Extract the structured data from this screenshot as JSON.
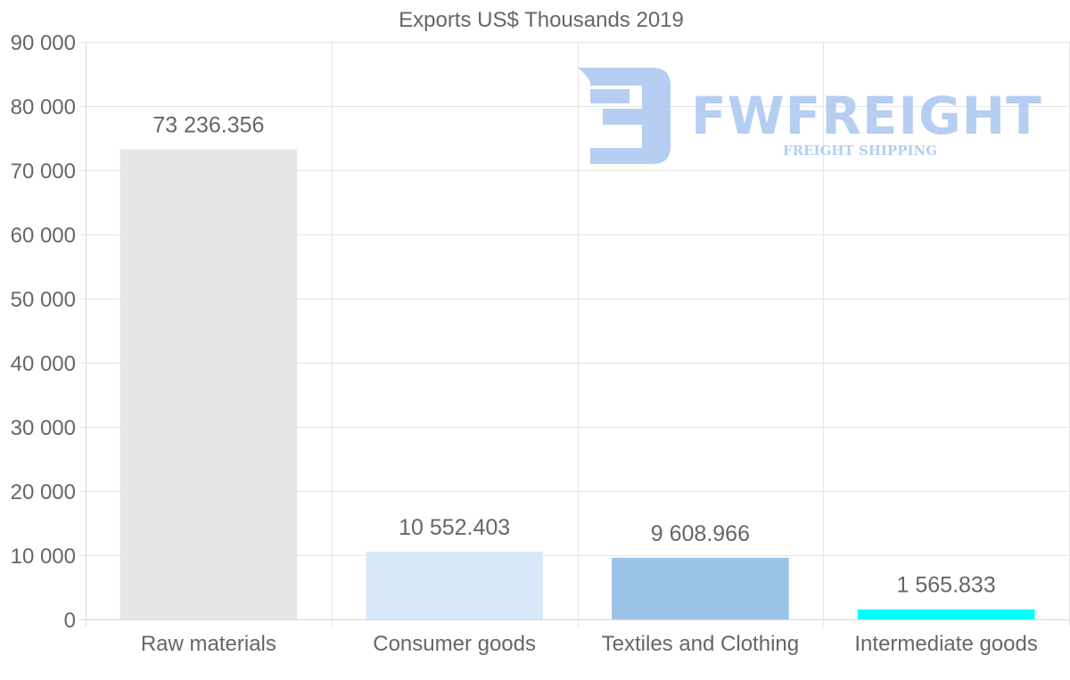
{
  "chart_data": {
    "type": "bar",
    "title": "Exports US$ Thousands 2019",
    "categories": [
      "Raw materials",
      "Consumer goods",
      "Textiles and Clothing",
      "Intermediate goods"
    ],
    "values": [
      73236.356,
      10552.403,
      9608.966,
      1565.833
    ],
    "value_labels": [
      "73 236.356",
      "10 552.403",
      "9 608.966",
      "1 565.833"
    ],
    "bar_colors": [
      "#e6e6e6",
      "#d9e8f9",
      "#9bc3e6",
      "#00ffff"
    ],
    "ylim": [
      0,
      90000
    ],
    "yticks": [
      0,
      10000,
      20000,
      30000,
      40000,
      50000,
      60000,
      70000,
      80000,
      90000
    ],
    "ytick_labels": [
      "0",
      "10 000",
      "20 000",
      "30 000",
      "40 000",
      "50 000",
      "60 000",
      "70 000",
      "80 000",
      "90 000"
    ],
    "xlabel": "",
    "ylabel": "",
    "grid": true
  },
  "watermark": {
    "brand": "FWFREIGHT",
    "tagline": "FREIGHT SHIPPING",
    "color": "#a9c6f0"
  }
}
